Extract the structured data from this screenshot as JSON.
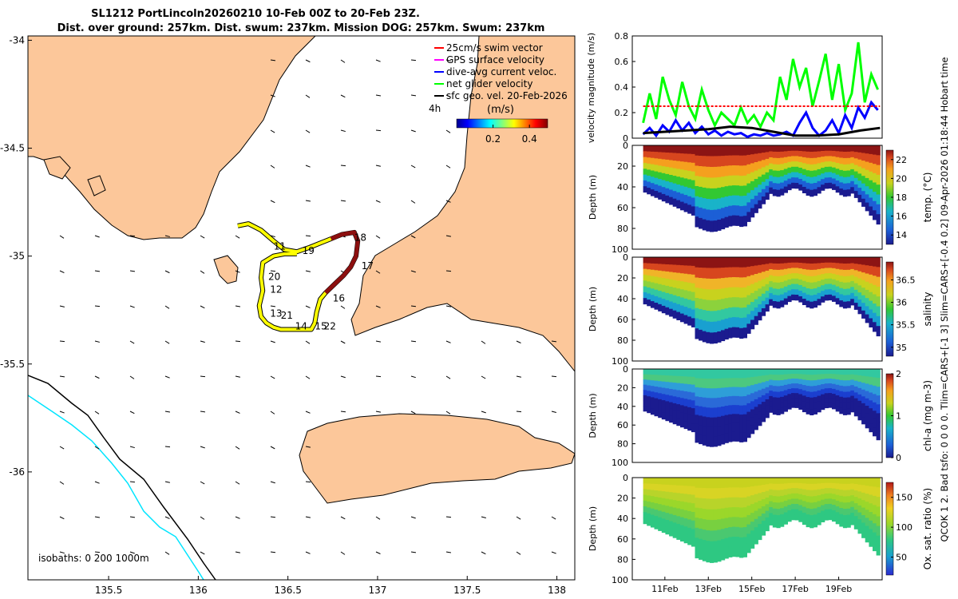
{
  "title": {
    "line1": "SL1212 PortLincoln20260210 10-Feb 00Z to 20-Feb 23Z.",
    "line2": "Dist. over ground: 257km. Dist. swum: 237km. Mission DOG: 257km. Swum: 237km"
  },
  "side_note": "QCOK 1  2. Bad tsfo: 0  0  0  0. Tlim=CARS+[-1 3] Slim=CARS+[-0.4 0.2] 09-Apr-2026 01:18:44 Hobart time",
  "colors": {
    "land": "#fcc79a",
    "gps_track": "#ffff00",
    "net_velocity": "#00ff00",
    "dac": "#0000ff",
    "swim_ref": "#ff0000",
    "gps_vel": "#ff00ff",
    "geo_vel": "#000000",
    "isobath_0": "#000000",
    "isobath_200": "#000000",
    "isobath_1000": "#00e5ff"
  },
  "chart_data": [
    {
      "type": "map",
      "name": "glider-track-map",
      "xlim": [
        135.05,
        138.1
      ],
      "ylim": [
        -36.5,
        -33.98
      ],
      "x_ticks": [
        135.5,
        136,
        136.5,
        137,
        137.5,
        138
      ],
      "x_tick_labels": [
        "135.5",
        "136",
        "136.5",
        "137",
        "137.5",
        "138"
      ],
      "y_ticks": [
        -34,
        -34.5,
        -35,
        -35.5,
        -36
      ],
      "y_tick_labels": [
        "-34",
        "-34.5",
        "-35",
        "-35.5",
        "-36"
      ],
      "legend": {
        "placement": "top-right",
        "entries": [
          {
            "label": "25cm/s swim vector",
            "color": "#ff0000"
          },
          {
            "label": "GPS surface velocity",
            "color": "#ff00ff"
          },
          {
            "label": "dive-avg current veloc.",
            "color": "#0000ff"
          },
          {
            "label": "net glider velocity",
            "color": "#00ff00"
          },
          {
            "label": "sfc geo. vel. 20-Feb-2026",
            "color": "#000000"
          }
        ]
      },
      "colorbar": {
        "label": "(m/s)",
        "range": [
          0,
          0.5
        ],
        "ticks": [
          0.2,
          0.4
        ],
        "tick_labels": [
          "0.2",
          "0.4"
        ],
        "colormap": "jet",
        "lag_label": "4h"
      },
      "isobath_note": "isobaths: 0   200  1000m",
      "track": [
        [
          136.22,
          -34.86
        ],
        [
          136.28,
          -34.85
        ],
        [
          136.35,
          -34.88
        ],
        [
          136.42,
          -34.93
        ],
        [
          136.48,
          -34.97
        ],
        [
          136.55,
          -34.98
        ],
        [
          136.62,
          -34.96
        ],
        [
          136.68,
          -34.94
        ],
        [
          136.74,
          -34.92
        ],
        [
          136.8,
          -34.9
        ],
        [
          136.87,
          -34.89
        ],
        [
          136.89,
          -34.93
        ],
        [
          136.88,
          -35.0
        ],
        [
          136.85,
          -35.05
        ],
        [
          136.81,
          -35.09
        ],
        [
          136.76,
          -35.13
        ],
        [
          136.71,
          -35.17
        ],
        [
          136.68,
          -35.2
        ],
        [
          136.66,
          -35.26
        ],
        [
          136.65,
          -35.31
        ],
        [
          136.63,
          -35.34
        ],
        [
          136.58,
          -35.34
        ],
        [
          136.52,
          -35.34
        ],
        [
          136.46,
          -35.34
        ],
        [
          136.42,
          -35.33
        ],
        [
          136.38,
          -35.31
        ],
        [
          136.35,
          -35.28
        ],
        [
          136.34,
          -35.23
        ],
        [
          136.36,
          -35.16
        ],
        [
          136.35,
          -35.1
        ],
        [
          136.36,
          -35.03
        ],
        [
          136.42,
          -35.0
        ],
        [
          136.48,
          -34.99
        ],
        [
          136.55,
          -34.99
        ]
      ],
      "labels": [
        {
          "text": "11",
          "lon": 136.42,
          "lat": -34.97
        },
        {
          "text": "19",
          "lon": 136.58,
          "lat": -34.99
        },
        {
          "text": "18",
          "lon": 136.87,
          "lat": -34.93
        },
        {
          "text": "17",
          "lon": 136.91,
          "lat": -35.06
        },
        {
          "text": "20",
          "lon": 136.39,
          "lat": -35.11
        },
        {
          "text": "12",
          "lon": 136.4,
          "lat": -35.17
        },
        {
          "text": "16",
          "lon": 136.75,
          "lat": -35.21
        },
        {
          "text": "13",
          "lon": 136.4,
          "lat": -35.28
        },
        {
          "text": "21",
          "lon": 136.46,
          "lat": -35.29
        },
        {
          "text": "14",
          "lon": 136.54,
          "lat": -35.34
        },
        {
          "text": "15",
          "lon": 136.65,
          "lat": -35.34
        },
        {
          "text": "22",
          "lon": 136.7,
          "lat": -35.34
        }
      ]
    },
    {
      "type": "line",
      "name": "velocity-magnitude",
      "ylabel": "velocity magnitude (m/s)",
      "xlim": [
        9.5,
        21.0
      ],
      "ylim": [
        0,
        0.8
      ],
      "y_ticks": [
        0,
        0.2,
        0.4,
        0.6,
        0.8
      ],
      "y_tick_labels": [
        "0",
        "0.2",
        "0.4",
        "0.6",
        "0.8"
      ],
      "series": [
        {
          "name": "net glider velocity",
          "color": "#00ff00",
          "x": [
            10.0,
            10.3,
            10.6,
            10.9,
            11.2,
            11.5,
            11.8,
            12.1,
            12.4,
            12.7,
            13.0,
            13.3,
            13.6,
            13.9,
            14.2,
            14.5,
            14.8,
            15.1,
            15.4,
            15.7,
            16.0,
            16.3,
            16.6,
            16.9,
            17.2,
            17.5,
            17.8,
            18.1,
            18.4,
            18.7,
            19.0,
            19.3,
            19.6,
            19.9,
            20.2,
            20.5,
            20.8
          ],
          "y": [
            0.12,
            0.35,
            0.15,
            0.48,
            0.3,
            0.18,
            0.44,
            0.25,
            0.15,
            0.38,
            0.22,
            0.1,
            0.2,
            0.15,
            0.1,
            0.24,
            0.12,
            0.18,
            0.09,
            0.2,
            0.14,
            0.48,
            0.3,
            0.62,
            0.4,
            0.55,
            0.25,
            0.45,
            0.66,
            0.3,
            0.58,
            0.22,
            0.35,
            0.75,
            0.28,
            0.5,
            0.38
          ]
        },
        {
          "name": "dive-avg current veloc.",
          "color": "#0000ff",
          "x": [
            10.0,
            10.3,
            10.6,
            10.9,
            11.2,
            11.5,
            11.8,
            12.1,
            12.4,
            12.7,
            13.0,
            13.3,
            13.6,
            13.9,
            14.2,
            14.5,
            14.8,
            15.1,
            15.4,
            15.7,
            16.0,
            16.3,
            16.6,
            16.9,
            17.2,
            17.5,
            17.8,
            18.1,
            18.4,
            18.7,
            19.0,
            19.3,
            19.6,
            19.9,
            20.2,
            20.5,
            20.8
          ],
          "y": [
            0.03,
            0.08,
            0.02,
            0.1,
            0.05,
            0.14,
            0.06,
            0.12,
            0.04,
            0.09,
            0.03,
            0.06,
            0.02,
            0.05,
            0.03,
            0.04,
            0.01,
            0.03,
            0.02,
            0.04,
            0.02,
            0.03,
            0.05,
            0.02,
            0.12,
            0.2,
            0.08,
            0.02,
            0.06,
            0.14,
            0.04,
            0.18,
            0.08,
            0.24,
            0.16,
            0.28,
            0.22
          ]
        },
        {
          "name": "swim speed",
          "color": "#ff0000",
          "x": [
            10.0,
            20.9
          ],
          "y": [
            0.25,
            0.25
          ]
        },
        {
          "name": "sfc geo. vel.",
          "color": "#000000",
          "x": [
            10.0,
            11.0,
            12.0,
            13.0,
            14.0,
            15.0,
            16.0,
            17.0,
            18.0,
            19.0,
            20.0,
            20.9
          ],
          "y": [
            0.04,
            0.05,
            0.06,
            0.07,
            0.09,
            0.08,
            0.05,
            0.02,
            0.02,
            0.03,
            0.06,
            0.08
          ]
        }
      ]
    },
    {
      "type": "heatmap",
      "name": "temperature-section",
      "ylabel": "Depth (m)",
      "colorbar_label": "temp. (°C)",
      "ylim": [
        100,
        0
      ],
      "y_ticks": [
        0,
        20,
        40,
        60,
        80,
        100
      ],
      "y_tick_labels": [
        "0",
        "20",
        "40",
        "60",
        "80",
        "100"
      ],
      "cbar_ticks": [
        14,
        16,
        18,
        20,
        22
      ],
      "cbar_tick_labels": [
        "14",
        "16",
        "18",
        "20",
        "22"
      ],
      "cbar_range": [
        13,
        23
      ]
    },
    {
      "type": "heatmap",
      "name": "salinity-section",
      "ylabel": "Depth (m)",
      "colorbar_label": "salinity",
      "ylim": [
        100,
        0
      ],
      "y_ticks": [
        0,
        20,
        40,
        60,
        80,
        100
      ],
      "y_tick_labels": [
        "0",
        "20",
        "40",
        "60",
        "80",
        "100"
      ],
      "cbar_ticks": [
        35,
        35.5,
        36,
        36.5
      ],
      "cbar_tick_labels": [
        "35",
        "35.5",
        "36",
        "36.5"
      ],
      "cbar_range": [
        34.8,
        36.9
      ]
    },
    {
      "type": "heatmap",
      "name": "chlorophyll-section",
      "ylabel": "Depth (m)",
      "colorbar_label": "chl-a (mg m-3)",
      "ylim": [
        100,
        0
      ],
      "y_ticks": [
        0,
        20,
        40,
        60,
        80,
        100
      ],
      "y_tick_labels": [
        "0",
        "20",
        "40",
        "60",
        "80",
        "100"
      ],
      "cbar_ticks": [
        0,
        1,
        2
      ],
      "cbar_tick_labels": [
        "0",
        "1",
        "2"
      ],
      "cbar_range": [
        0,
        2
      ]
    },
    {
      "type": "heatmap",
      "name": "oxygen-section",
      "ylabel": "Depth (m)",
      "colorbar_label": "Ox. sat. ratio (%)",
      "ylim": [
        100,
        0
      ],
      "y_ticks": [
        0,
        20,
        40,
        60,
        80,
        100
      ],
      "y_tick_labels": [
        "0",
        "20",
        "40",
        "60",
        "80",
        "100"
      ],
      "cbar_ticks": [
        50,
        100,
        150
      ],
      "cbar_tick_labels": [
        "50",
        "100",
        "150"
      ],
      "cbar_range": [
        20,
        175
      ],
      "x_ticks": [
        11,
        13,
        15,
        17,
        19
      ],
      "x_tick_labels": [
        "11Feb",
        "13Feb",
        "15Feb",
        "17Feb",
        "19Feb"
      ]
    }
  ]
}
